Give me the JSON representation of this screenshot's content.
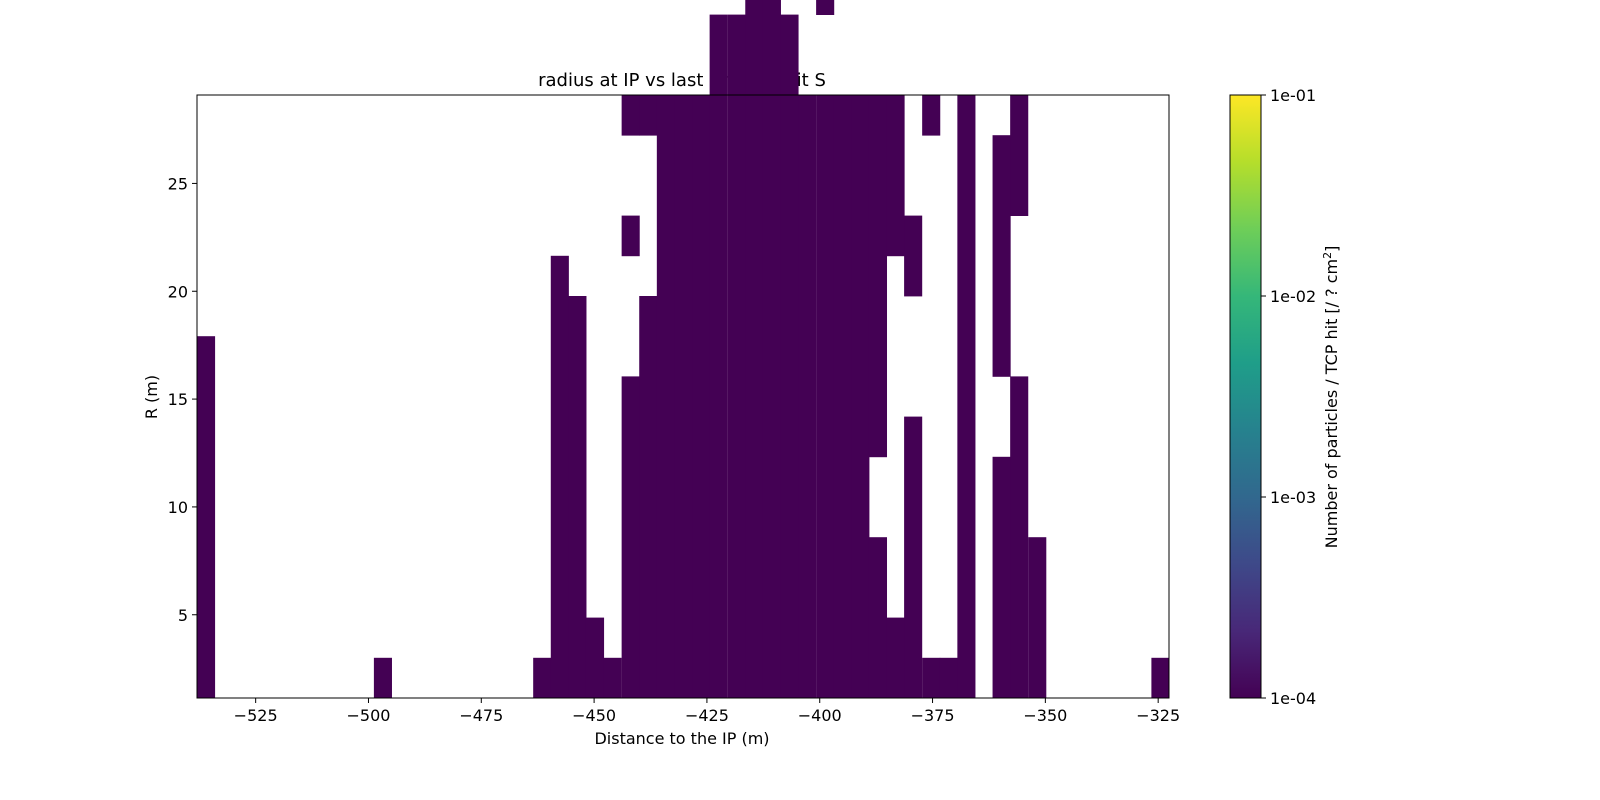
{
  "chart_data": {
    "type": "heatmap",
    "title": "radius at IP vs last primary hit S",
    "xlabel": "Distance to the IP (m)",
    "ylabel": "R (m)",
    "xlim": [
      -538,
      -322.6
    ],
    "ylim": [
      1.14,
      29.1
    ],
    "xticks": [
      -525,
      -500,
      -475,
      -450,
      -425,
      -400,
      -375,
      -350,
      -325
    ],
    "xtick_labels": [
      "−525",
      "−500",
      "−475",
      "−450",
      "−425",
      "−400",
      "−375",
      "−350",
      "−325"
    ],
    "yticks": [
      5,
      10,
      15,
      20,
      25
    ],
    "ytick_labels": [
      "5",
      "10",
      "15",
      "20",
      "25"
    ],
    "bin_width_x": 3.92,
    "bin_height_y": 1.864,
    "cell_value": 0.0001,
    "cell_color": "#440154",
    "columns": [
      {
        "x0": -538.0,
        "rows": [
          [
            0,
            9
          ]
        ]
      },
      {
        "x0": -498.8,
        "rows": [
          [
            0,
            1
          ]
        ]
      },
      {
        "x0": -463.5,
        "rows": [
          [
            0,
            1
          ]
        ]
      },
      {
        "x0": -459.6,
        "rows": [
          [
            0,
            11
          ]
        ]
      },
      {
        "x0": -455.7,
        "rows": [
          [
            0,
            10
          ]
        ]
      },
      {
        "x0": -451.8,
        "rows": [
          [
            0,
            2
          ]
        ]
      },
      {
        "x0": -447.9,
        "rows": [
          [
            0,
            1
          ]
        ]
      },
      {
        "x0": -443.9,
        "rows": [
          [
            0,
            8
          ],
          [
            11,
            12
          ],
          [
            14,
            15
          ]
        ]
      },
      {
        "x0": -440.0,
        "rows": [
          [
            0,
            10
          ],
          [
            14,
            15
          ]
        ]
      },
      {
        "x0": -436.1,
        "rows": [
          [
            0,
            15
          ]
        ]
      },
      {
        "x0": -432.2,
        "rows": [
          [
            0,
            15
          ]
        ]
      },
      {
        "x0": -428.3,
        "rows": [
          [
            0,
            15
          ]
        ]
      },
      {
        "x0": -424.4,
        "rows": [
          [
            0,
            17
          ]
        ]
      },
      {
        "x0": -420.4,
        "rows": [
          [
            0,
            17
          ]
        ]
      },
      {
        "x0": -416.5,
        "rows": [
          [
            0,
            19
          ],
          [
            20,
            21
          ]
        ]
      },
      {
        "x0": -412.6,
        "rows": [
          [
            0,
            19
          ]
        ]
      },
      {
        "x0": -408.7,
        "rows": [
          [
            0,
            17
          ]
        ]
      },
      {
        "x0": -404.8,
        "rows": [
          [
            0,
            15
          ]
        ]
      },
      {
        "x0": -400.8,
        "rows": [
          [
            0,
            15
          ],
          [
            17,
            19
          ]
        ]
      },
      {
        "x0": -396.9,
        "rows": [
          [
            0,
            15
          ]
        ]
      },
      {
        "x0": -393.0,
        "rows": [
          [
            0,
            15
          ]
        ]
      },
      {
        "x0": -389.1,
        "rows": [
          [
            0,
            4
          ],
          [
            6,
            15
          ]
        ]
      },
      {
        "x0": -385.2,
        "rows": [
          [
            0,
            2
          ],
          [
            11,
            15
          ]
        ]
      },
      {
        "x0": -381.3,
        "rows": [
          [
            0,
            7
          ],
          [
            10,
            12
          ]
        ]
      },
      {
        "x0": -377.3,
        "rows": [
          [
            0,
            1
          ],
          [
            14,
            15
          ]
        ]
      },
      {
        "x0": -373.4,
        "rows": [
          [
            0,
            1
          ]
        ]
      },
      {
        "x0": -369.5,
        "rows": [
          [
            0,
            15
          ]
        ]
      },
      {
        "x0": -361.7,
        "rows": [
          [
            0,
            6
          ],
          [
            8,
            14
          ]
        ]
      },
      {
        "x0": -357.8,
        "rows": [
          [
            0,
            8
          ],
          [
            12,
            15
          ]
        ]
      },
      {
        "x0": -353.8,
        "rows": [
          [
            0,
            4
          ]
        ]
      },
      {
        "x0": -326.5,
        "rows": [
          [
            0,
            1
          ]
        ]
      }
    ],
    "colorbar": {
      "label": "Number of particles / TCP hit [/ ? cm",
      "label_superscript": "2",
      "label_close": "]",
      "scale": "log",
      "range": [
        0.0001,
        0.1
      ],
      "ticks": [
        "1e-04",
        "1e-03",
        "1e-02",
        "1e-01"
      ],
      "colormap": "viridis",
      "stops": [
        "#440154",
        "#482878",
        "#3e4989",
        "#31688e",
        "#26828e",
        "#1f9e89",
        "#35b779",
        "#6ece58",
        "#b5de2b",
        "#fde725"
      ]
    }
  }
}
